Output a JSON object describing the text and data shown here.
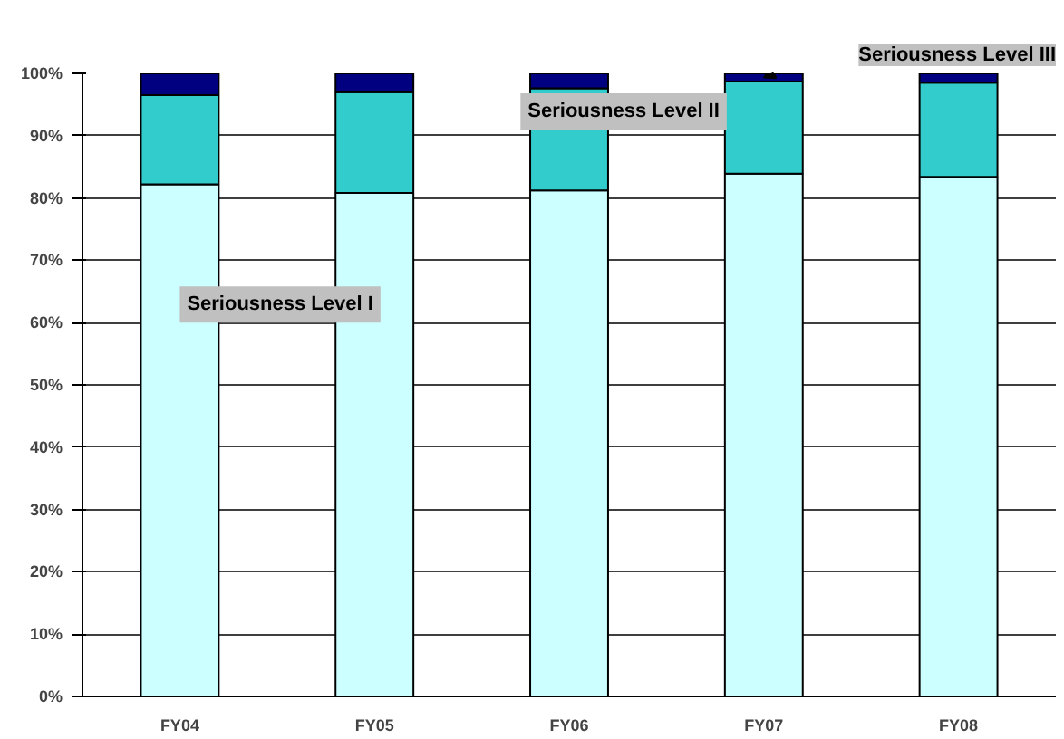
{
  "chart_data": {
    "type": "bar",
    "stacked": true,
    "categories": [
      "FY04",
      "FY05",
      "FY06",
      "FY07",
      "FY08"
    ],
    "series": [
      {
        "name": "Seriousness Level I",
        "color": "#ccffff",
        "values": [
          82.2,
          80.8,
          81.2,
          83.9,
          83.4
        ]
      },
      {
        "name": "Seriousness Level II",
        "color": "#33cccc",
        "values": [
          14.3,
          16.2,
          16.4,
          14.8,
          15.1
        ]
      },
      {
        "name": "Seriousness Level III",
        "color": "#000080",
        "values": [
          3.5,
          3.0,
          2.4,
          1.3,
          1.5
        ]
      }
    ],
    "ylim": [
      0,
      100
    ],
    "yticks": [
      {
        "value": 0,
        "label": "0%"
      },
      {
        "value": 10,
        "label": "10%"
      },
      {
        "value": 20,
        "label": "20%"
      },
      {
        "value": 30,
        "label": "30%"
      },
      {
        "value": 40,
        "label": "40%"
      },
      {
        "value": 50,
        "label": "50%"
      },
      {
        "value": 60,
        "label": "60%"
      },
      {
        "value": 70,
        "label": "70%"
      },
      {
        "value": 80,
        "label": "80%"
      },
      {
        "value": 90,
        "label": "90%"
      },
      {
        "value": 100,
        "label": "100%"
      }
    ],
    "grid": "y",
    "legend": false
  }
}
